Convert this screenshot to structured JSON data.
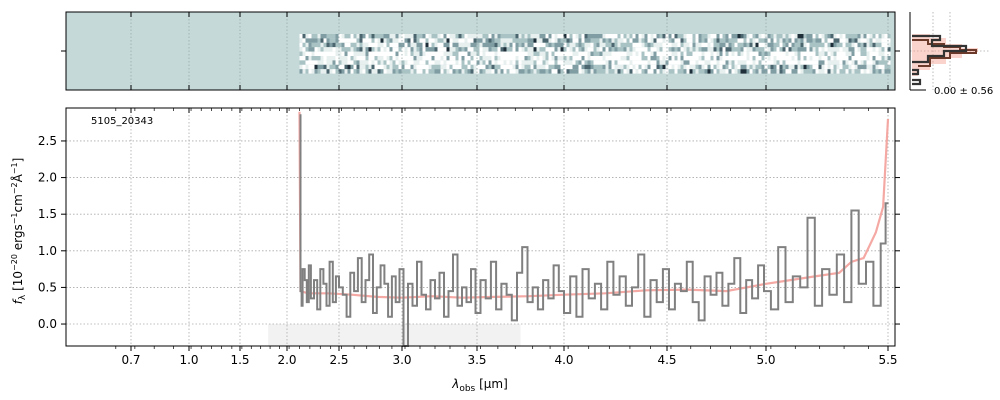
{
  "chart_data": [
    {
      "type": "heatmap",
      "panel": "2d-spectrum",
      "background_color": "#c5d9d8",
      "pixel_colors": [
        "#ffffff",
        "#e8f0ef",
        "#a9c2c4",
        "#7f9da3",
        "#4c6670",
        "#1e2f3a"
      ],
      "data_start_um": 2.12,
      "grid": true
    },
    {
      "type": "histogram",
      "panel": "residual-histogram",
      "annotation": "0.00 ± 0.56",
      "colors": {
        "data": "#333333",
        "model": "#f4a08f",
        "model_edge": "#6b3a2a"
      }
    },
    {
      "type": "line",
      "panel": "1d-spectrum",
      "label": "5105_20343",
      "xlabel_main": "λ",
      "xlabel_sub": "obs",
      "xlabel_unit": " [μm]",
      "ylabel": "f_λ [10^-20 ergs^-1 cm^-2 Å^-1]",
      "ylabel_parts": {
        "f": "f",
        "lambda_sub": "λ",
        "bracket_open": " [10",
        "exp1": "−20",
        "mid1": " ergs",
        "exp2": "−1",
        "mid2": "cm",
        "exp3": "−2",
        "mid3": "Å",
        "exp4": "−1",
        "bracket_close": "]"
      },
      "xticks": [
        "0.7",
        "1.0",
        "1.5",
        "2.0",
        "2.5",
        "3.0",
        "3.5",
        "4.0",
        "4.5",
        "5.0",
        "5.5"
      ],
      "yticks": [
        "0.0",
        "0.5",
        "1.0",
        "1.5",
        "2.0",
        "2.5"
      ],
      "ylim": [
        -0.3,
        2.95
      ],
      "grid": true,
      "series": [
        {
          "role": "data",
          "color": "#808080",
          "x": [
            2.12,
            2.13,
            2.14,
            2.15,
            2.17,
            2.19,
            2.21,
            2.23,
            2.26,
            2.29,
            2.32,
            2.35,
            2.38,
            2.41,
            2.44,
            2.47,
            2.5,
            2.53,
            2.56,
            2.59,
            2.62,
            2.65,
            2.68,
            2.71,
            2.74,
            2.77,
            2.8,
            2.83,
            2.86,
            2.89,
            2.92,
            2.95,
            2.98,
            3.01,
            3.04,
            3.07,
            3.1,
            3.13,
            3.16,
            3.19,
            3.22,
            3.25,
            3.28,
            3.31,
            3.34,
            3.37,
            3.4,
            3.43,
            3.46,
            3.49,
            3.52,
            3.55,
            3.58,
            3.61,
            3.64,
            3.67,
            3.7,
            3.73,
            3.76,
            3.79,
            3.82,
            3.85,
            3.88,
            3.91,
            3.94,
            3.97,
            4.0,
            4.03,
            4.06,
            4.09,
            4.12,
            4.15,
            4.18,
            4.21,
            4.24,
            4.27,
            4.3,
            4.33,
            4.36,
            4.39,
            4.42,
            4.45,
            4.48,
            4.51,
            4.54,
            4.57,
            4.6,
            4.63,
            4.66,
            4.69,
            4.72,
            4.75,
            4.78,
            4.81,
            4.84,
            4.87,
            4.9,
            4.93,
            4.96,
            4.99,
            5.02,
            5.05,
            5.08,
            5.11,
            5.14,
            5.17,
            5.2,
            5.23,
            5.26,
            5.29,
            5.32,
            5.35,
            5.38,
            5.41,
            5.44,
            5.47,
            5.49
          ],
          "y": [
            2.85,
            0.45,
            0.25,
            0.75,
            0.6,
            0.3,
            0.8,
            0.35,
            0.6,
            0.2,
            0.75,
            0.55,
            0.25,
            0.85,
            0.3,
            0.65,
            0.5,
            0.4,
            0.1,
            0.7,
            0.45,
            0.9,
            0.3,
            0.6,
            0.95,
            0.15,
            0.5,
            0.8,
            0.55,
            0.1,
            0.65,
            0.3,
            0.75,
            -0.3,
            0.55,
            0.25,
            0.85,
            0.4,
            0.2,
            0.6,
            0.35,
            0.7,
            0.1,
            0.45,
            0.95,
            0.25,
            0.5,
            0.3,
            0.75,
            0.15,
            0.6,
            0.35,
            0.85,
            0.2,
            0.55,
            0.4,
            0.05,
            0.7,
            1.05,
            0.3,
            0.5,
            0.2,
            0.6,
            0.35,
            0.8,
            0.45,
            0.15,
            0.65,
            0.1,
            0.75,
            0.35,
            0.55,
            0.2,
            0.85,
            0.4,
            0.65,
            0.25,
            0.5,
            0.95,
            0.1,
            0.6,
            0.3,
            0.75,
            0.2,
            0.55,
            0.45,
            0.85,
            0.3,
            0.05,
            0.65,
            0.4,
            0.7,
            0.25,
            0.55,
            0.9,
            0.15,
            0.6,
            0.35,
            0.8,
            0.45,
            0.2,
            1.05,
            0.3,
            0.65,
            0.5,
            1.45,
            0.25,
            0.75,
            0.4,
            0.95,
            0.3,
            1.55,
            0.55,
            0.85,
            0.25,
            1.1,
            1.65
          ]
        },
        {
          "role": "model",
          "color": "#f4a09a",
          "x": [
            2.12,
            2.13,
            2.2,
            2.4,
            2.6,
            2.8,
            3.0,
            3.2,
            3.4,
            3.6,
            3.8,
            4.0,
            4.2,
            4.4,
            4.6,
            4.8,
            5.0,
            5.1,
            5.2,
            5.3,
            5.35,
            5.4,
            5.45,
            5.48,
            5.5
          ],
          "y": [
            2.9,
            0.45,
            0.42,
            0.42,
            0.4,
            0.37,
            0.36,
            0.38,
            0.36,
            0.37,
            0.38,
            0.4,
            0.42,
            0.46,
            0.47,
            0.45,
            0.55,
            0.6,
            0.65,
            0.7,
            0.85,
            0.9,
            1.25,
            1.6,
            2.8
          ]
        }
      ],
      "noise_band": {
        "color": "#f2f2f2",
        "x_start_um": 1.8,
        "x_end_um": 3.75,
        "y_value": -0.3,
        "y_top": 0.0
      }
    }
  ]
}
